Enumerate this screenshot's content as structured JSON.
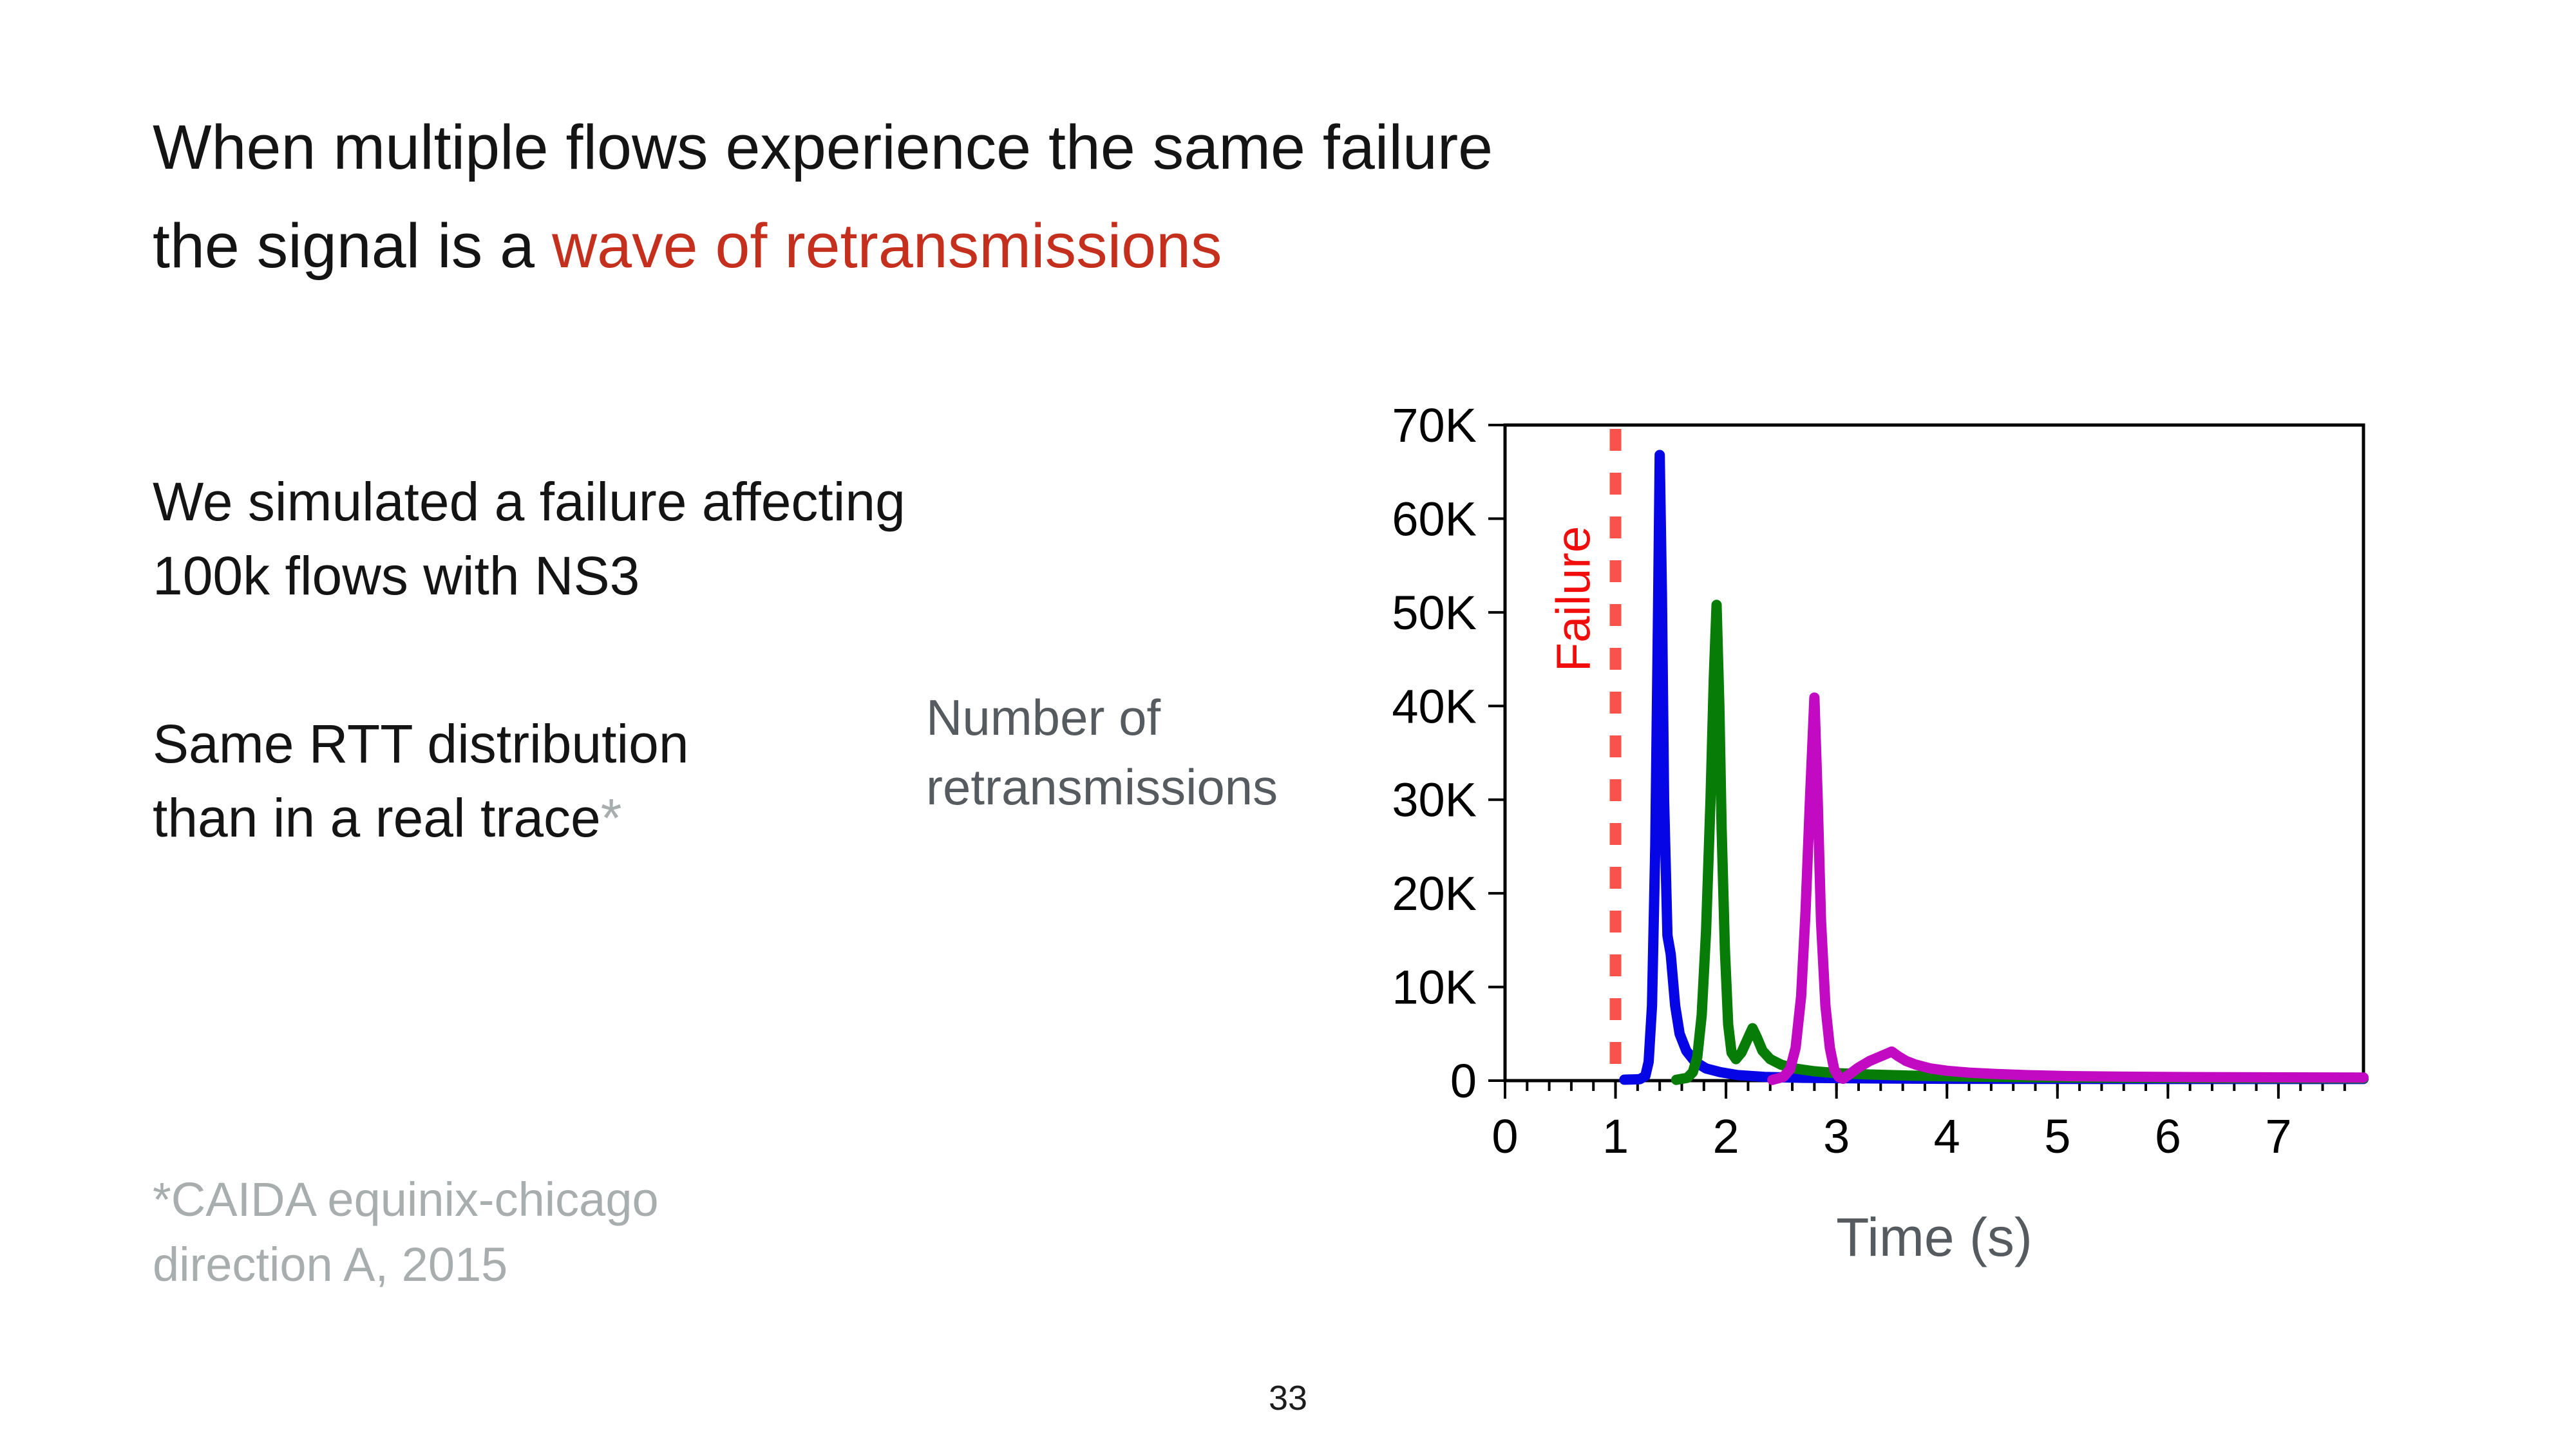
{
  "slide": {
    "title": {
      "line1": "When multiple flows experience the same failure",
      "line2_prefix": "the signal is a ",
      "line2_highlight": "wave of retransmissions"
    },
    "body1": {
      "line1": "We simulated a failure affecting",
      "line2": "100k flows with NS3"
    },
    "body2": {
      "line1": "Same RTT distribution",
      "line2": "than in a real trace",
      "footnote_marker": "*"
    },
    "chart_y_label": {
      "line1": "Number of",
      "line2": "retransmissions"
    },
    "footnote": {
      "line1": "*CAIDA equinix-chicago",
      "line2": "direction A, 2015"
    },
    "page_number": "33"
  },
  "colors": {
    "title_red": "#c4301d",
    "axis_gray": "#565b60",
    "footnote_gray": "#a8adad",
    "tick_black": "#000000",
    "failure_text_red": "#f20d0d",
    "failure_dash_red": "#f8524a",
    "series_blue": "#0505e6",
    "series_green": "#077d07",
    "series_magenta": "#c30ac3"
  },
  "chart_data": {
    "type": "line",
    "title": "",
    "xlabel": "Time (s)",
    "ylabel": "Number of retransmissions",
    "xlim": [
      0,
      7.77
    ],
    "ylim": [
      0,
      70000
    ],
    "grid": false,
    "legend": "none",
    "x_major_ticks": [
      0,
      1,
      2,
      3,
      4,
      5,
      6,
      7
    ],
    "x_minor_tick_step": 0.2,
    "y_ticks": [
      {
        "value": 0,
        "label": "0"
      },
      {
        "value": 10000,
        "label": "10K"
      },
      {
        "value": 20000,
        "label": "20K"
      },
      {
        "value": 30000,
        "label": "30K"
      },
      {
        "value": 40000,
        "label": "40K"
      },
      {
        "value": 50000,
        "label": "50K"
      },
      {
        "value": 60000,
        "label": "60K"
      },
      {
        "value": 70000,
        "label": "70K"
      }
    ],
    "annotations": {
      "failure_line_x": 1,
      "failure_label": "Failure"
    },
    "series": [
      {
        "name": "wave-1-blue",
        "color_key": "series_blue",
        "peak": {
          "x": 1.4,
          "y": 66800
        },
        "points": [
          [
            1.08,
            100
          ],
          [
            1.22,
            150
          ],
          [
            1.27,
            500
          ],
          [
            1.3,
            2000
          ],
          [
            1.33,
            8000
          ],
          [
            1.36,
            25000
          ],
          [
            1.385,
            50000
          ],
          [
            1.4,
            66800
          ],
          [
            1.42,
            52000
          ],
          [
            1.44,
            30000
          ],
          [
            1.47,
            15500
          ],
          [
            1.5,
            13500
          ],
          [
            1.54,
            8000
          ],
          [
            1.58,
            5000
          ],
          [
            1.64,
            3200
          ],
          [
            1.72,
            2000
          ],
          [
            1.82,
            1300
          ],
          [
            1.95,
            900
          ],
          [
            2.1,
            600
          ],
          [
            2.35,
            400
          ],
          [
            2.7,
            300
          ],
          [
            3.2,
            250
          ],
          [
            4.0,
            200
          ],
          [
            5.5,
            180
          ],
          [
            7.77,
            180
          ]
        ]
      },
      {
        "name": "wave-2-green",
        "color_key": "series_green",
        "peak": {
          "x": 1.915,
          "y": 50800
        },
        "points": [
          [
            1.55,
            80
          ],
          [
            1.65,
            300
          ],
          [
            1.7,
            900
          ],
          [
            1.74,
            2500
          ],
          [
            1.78,
            7000
          ],
          [
            1.82,
            16000
          ],
          [
            1.86,
            30000
          ],
          [
            1.89,
            43000
          ],
          [
            1.915,
            50800
          ],
          [
            1.94,
            40000
          ],
          [
            1.96,
            27000
          ],
          [
            1.99,
            14000
          ],
          [
            2.02,
            6000
          ],
          [
            2.05,
            3000
          ],
          [
            2.09,
            2300
          ],
          [
            2.14,
            3000
          ],
          [
            2.19,
            4300
          ],
          [
            2.24,
            5600
          ],
          [
            2.28,
            4600
          ],
          [
            2.33,
            3200
          ],
          [
            2.4,
            2300
          ],
          [
            2.5,
            1700
          ],
          [
            2.62,
            1300
          ],
          [
            2.8,
            1000
          ],
          [
            3.0,
            800
          ],
          [
            3.3,
            650
          ],
          [
            3.7,
            520
          ],
          [
            4.2,
            430
          ],
          [
            4.8,
            350
          ],
          [
            5.6,
            300
          ],
          [
            6.5,
            270
          ],
          [
            7.77,
            250
          ]
        ]
      },
      {
        "name": "wave-3-magenta",
        "color_key": "series_magenta",
        "peak": {
          "x": 2.8,
          "y": 40900
        },
        "points": [
          [
            2.42,
            80
          ],
          [
            2.52,
            400
          ],
          [
            2.58,
            1200
          ],
          [
            2.63,
            3500
          ],
          [
            2.68,
            9000
          ],
          [
            2.72,
            18000
          ],
          [
            2.76,
            30000
          ],
          [
            2.8,
            40900
          ],
          [
            2.83,
            30000
          ],
          [
            2.86,
            17000
          ],
          [
            2.9,
            8000
          ],
          [
            2.94,
            3500
          ],
          [
            2.98,
            1200
          ],
          [
            3.02,
            400
          ],
          [
            3.06,
            200
          ],
          [
            3.12,
            700
          ],
          [
            3.2,
            1400
          ],
          [
            3.3,
            2100
          ],
          [
            3.4,
            2600
          ],
          [
            3.5,
            3100
          ],
          [
            3.56,
            2600
          ],
          [
            3.63,
            2100
          ],
          [
            3.72,
            1700
          ],
          [
            3.85,
            1300
          ],
          [
            4.0,
            1050
          ],
          [
            4.2,
            850
          ],
          [
            4.45,
            700
          ],
          [
            4.75,
            580
          ],
          [
            5.1,
            480
          ],
          [
            5.6,
            420
          ],
          [
            6.2,
            380
          ],
          [
            6.9,
            350
          ],
          [
            7.77,
            330
          ]
        ]
      }
    ]
  }
}
